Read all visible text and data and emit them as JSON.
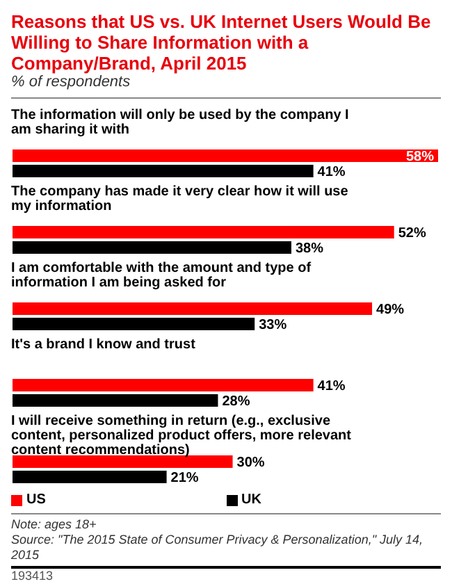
{
  "chart_data": {
    "type": "bar",
    "orientation": "horizontal",
    "title": "Reasons that US vs. UK Internet Users Would Be Willing to Share Information with a Company/Brand, April 2015",
    "subtitle": "% of respondents",
    "categories": [
      "The information will only be used by the company I am sharing it with",
      "The company has made it very clear how it will use my information",
      "I am comfortable with the amount and type of information I am being asked for",
      "It's a brand I know and trust",
      "I will receive something in return (e.g., exclusive content, personalized product offers, more relevant content recommendations)"
    ],
    "series": [
      {
        "name": "US",
        "color": "#ff0000",
        "values": [
          58,
          52,
          49,
          41,
          30
        ],
        "value_labels": [
          "58%",
          "52%",
          "49%",
          "41%",
          "30%"
        ]
      },
      {
        "name": "UK",
        "color": "#000000",
        "values": [
          41,
          38,
          33,
          28,
          21
        ],
        "value_labels": [
          "41%",
          "38%",
          "33%",
          "28%",
          "21%"
        ]
      }
    ],
    "xlim": [
      0,
      58
    ],
    "tick_labels": false,
    "legend": "bottom",
    "annotations": [
      "Note: ages 18+",
      "Source: \"The 2015 State of Consumer Privacy & Personalization,\" July 14, 2015",
      "193413"
    ]
  }
}
